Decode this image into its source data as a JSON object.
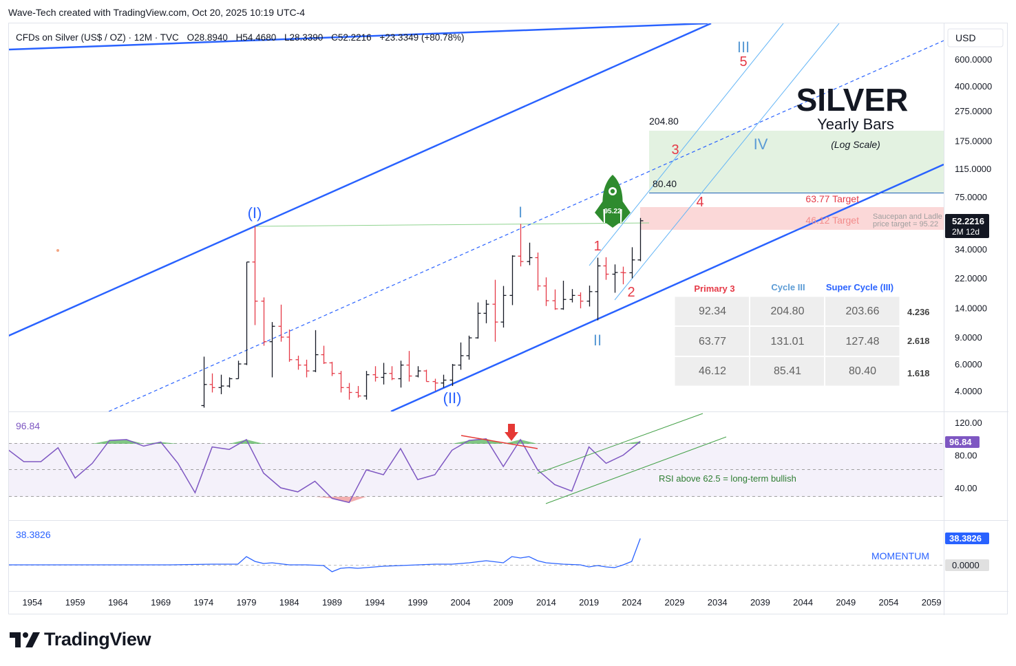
{
  "header": {
    "text": "Wave-Tech created with TradingView.com, Oct 20, 2025 10:19 UTC-4"
  },
  "legend": {
    "symbol": "CFDs on Silver (US$ / OZ) · 12M · TVC",
    "o_key": "O",
    "o_val": "28.8940",
    "h_key": "H",
    "h_val": "54.4680",
    "l_key": "L",
    "l_val": "28.3390",
    "c_key": "C",
    "c_val": "52.2216",
    "chg": "+23.3349 (+80.78%)"
  },
  "currency": "USD",
  "title": {
    "main": "SILVER",
    "sub": "Yearly Bars",
    "scale": "(Log Scale)"
  },
  "price_axis": [
    "600.0000",
    "400.0000",
    "275.0000",
    "175.0000",
    "115.0000",
    "75.0000",
    "34.0000",
    "22.0000",
    "14.0000",
    "9.0000",
    "6.0000",
    "4.0000"
  ],
  "price_tag": {
    "value": "52.2216",
    "countdown": "2M 12d"
  },
  "rsi_axis": [
    "120.00",
    "80.00",
    "40.00"
  ],
  "rsi_value": "96.84",
  "momentum_axis": [
    "0.0000"
  ],
  "momentum_value": "38.3826",
  "momentum_label": "MOMENTUM",
  "rsi_note": "RSI above 62.5 = long-term bullish",
  "time_axis": [
    "1954",
    "1959",
    "1964",
    "1969",
    "1974",
    "1979",
    "1984",
    "1989",
    "1994",
    "1999",
    "2004",
    "2009",
    "2014",
    "2019",
    "2024",
    "2029",
    "2034",
    "2039",
    "2044",
    "2049",
    "2054",
    "2059"
  ],
  "waves": {
    "w_I_primary": "(I)",
    "w_II_primary": "(II)",
    "w_I_cycle": "I",
    "w_II_cycle": "II",
    "w_III_cycle": "III",
    "w_IV_cycle": "IV",
    "m1": "1",
    "m2": "2",
    "m3": "3",
    "m4": "4",
    "m5": "5"
  },
  "levels": {
    "top": "204.80",
    "mid": "80.40"
  },
  "targets": {
    "t1": "63.77 Target",
    "t2": "46.12 Target"
  },
  "saucepan": {
    "line1": "Saucepan and Ladle",
    "line2": "price target = 95.22"
  },
  "rocket_value": "95.22",
  "fib_table": {
    "headers": [
      "Primary 3",
      "Cycle III",
      "Super Cycle (III)"
    ],
    "rows": [
      {
        "cells": [
          "92.34",
          "204.80",
          "203.66"
        ],
        "ratio": "4.236"
      },
      {
        "cells": [
          "63.77",
          "131.01",
          "127.48"
        ],
        "ratio": "2.618"
      },
      {
        "cells": [
          "46.12",
          "85.41",
          "80.40"
        ],
        "ratio": "1.618"
      }
    ]
  },
  "brand": "TradingView",
  "chart_data": {
    "type": "bar",
    "symbol": "CFDs on Silver (US$ / OZ)",
    "interval": "12M",
    "scale": "log",
    "title": "SILVER",
    "subtitle": "Yearly Bars",
    "ylim": [
      3.2,
      700
    ],
    "xlim": [
      1951,
      2061
    ],
    "bars": [
      {
        "year": 1974,
        "o": 3.2,
        "h": 6.7,
        "l": 3.1,
        "c": 4.4
      },
      {
        "year": 1975,
        "o": 4.4,
        "h": 5.2,
        "l": 3.9,
        "c": 4.2
      },
      {
        "year": 1976,
        "o": 4.2,
        "h": 5.1,
        "l": 3.8,
        "c": 4.3
      },
      {
        "year": 1977,
        "o": 4.3,
        "h": 4.9,
        "l": 4.2,
        "c": 4.8
      },
      {
        "year": 1978,
        "o": 4.8,
        "h": 6.3,
        "l": 4.8,
        "c": 6.0
      },
      {
        "year": 1979,
        "o": 6.0,
        "h": 28.0,
        "l": 5.9,
        "c": 28.0
      },
      {
        "year": 1980,
        "o": 28.0,
        "h": 48.0,
        "l": 10.8,
        "c": 15.5
      },
      {
        "year": 1981,
        "o": 15.5,
        "h": 16.4,
        "l": 7.9,
        "c": 8.4
      },
      {
        "year": 1982,
        "o": 8.4,
        "h": 11.3,
        "l": 4.9,
        "c": 10.6
      },
      {
        "year": 1983,
        "o": 10.6,
        "h": 14.7,
        "l": 8.4,
        "c": 9.0
      },
      {
        "year": 1984,
        "o": 9.0,
        "h": 10.1,
        "l": 6.2,
        "c": 6.4
      },
      {
        "year": 1985,
        "o": 6.4,
        "h": 6.8,
        "l": 5.5,
        "c": 5.9
      },
      {
        "year": 1986,
        "o": 5.9,
        "h": 6.4,
        "l": 4.9,
        "c": 5.4
      },
      {
        "year": 1987,
        "o": 5.4,
        "h": 10.0,
        "l": 5.3,
        "c": 6.9
      },
      {
        "year": 1988,
        "o": 6.9,
        "h": 7.9,
        "l": 6.0,
        "c": 6.1
      },
      {
        "year": 1989,
        "o": 6.1,
        "h": 6.2,
        "l": 5.0,
        "c": 5.2
      },
      {
        "year": 1990,
        "o": 5.2,
        "h": 5.4,
        "l": 3.9,
        "c": 4.2
      },
      {
        "year": 1991,
        "o": 4.2,
        "h": 4.5,
        "l": 3.5,
        "c": 3.9
      },
      {
        "year": 1992,
        "o": 3.9,
        "h": 4.3,
        "l": 3.6,
        "c": 3.7
      },
      {
        "year": 1993,
        "o": 3.7,
        "h": 5.4,
        "l": 3.5,
        "c": 5.1
      },
      {
        "year": 1994,
        "o": 5.1,
        "h": 5.8,
        "l": 4.6,
        "c": 4.9
      },
      {
        "year": 1995,
        "o": 4.9,
        "h": 6.1,
        "l": 4.4,
        "c": 5.2
      },
      {
        "year": 1996,
        "o": 5.2,
        "h": 5.8,
        "l": 4.7,
        "c": 4.8
      },
      {
        "year": 1997,
        "o": 4.8,
        "h": 6.3,
        "l": 4.2,
        "c": 5.9
      },
      {
        "year": 1998,
        "o": 5.9,
        "h": 7.3,
        "l": 4.6,
        "c": 5.0
      },
      {
        "year": 1999,
        "o": 5.0,
        "h": 5.8,
        "l": 4.9,
        "c": 5.4
      },
      {
        "year": 2000,
        "o": 5.4,
        "h": 5.5,
        "l": 4.6,
        "c": 4.6
      },
      {
        "year": 2001,
        "o": 4.6,
        "h": 4.8,
        "l": 4.0,
        "c": 4.5
      },
      {
        "year": 2002,
        "o": 4.5,
        "h": 5.1,
        "l": 4.2,
        "c": 4.7
      },
      {
        "year": 2003,
        "o": 4.7,
        "h": 6.0,
        "l": 4.3,
        "c": 5.9
      },
      {
        "year": 2004,
        "o": 5.9,
        "h": 8.3,
        "l": 5.5,
        "c": 6.8
      },
      {
        "year": 2005,
        "o": 6.8,
        "h": 9.2,
        "l": 6.4,
        "c": 8.9
      },
      {
        "year": 2006,
        "o": 8.9,
        "h": 15.2,
        "l": 8.8,
        "c": 12.9
      },
      {
        "year": 2007,
        "o": 12.9,
        "h": 15.8,
        "l": 11.1,
        "c": 14.8
      },
      {
        "year": 2008,
        "o": 14.8,
        "h": 21.4,
        "l": 8.4,
        "c": 11.3
      },
      {
        "year": 2009,
        "o": 11.3,
        "h": 19.5,
        "l": 10.4,
        "c": 16.9
      },
      {
        "year": 2010,
        "o": 16.9,
        "h": 31.0,
        "l": 14.6,
        "c": 30.6
      },
      {
        "year": 2011,
        "o": 30.6,
        "h": 49.8,
        "l": 26.2,
        "c": 28.2
      },
      {
        "year": 2012,
        "o": 28.2,
        "h": 37.5,
        "l": 26.7,
        "c": 29.9
      },
      {
        "year": 2013,
        "o": 29.9,
        "h": 32.3,
        "l": 18.2,
        "c": 19.5
      },
      {
        "year": 2014,
        "o": 19.5,
        "h": 22.2,
        "l": 14.4,
        "c": 15.6
      },
      {
        "year": 2015,
        "o": 15.6,
        "h": 18.5,
        "l": 13.6,
        "c": 13.8
      },
      {
        "year": 2016,
        "o": 13.8,
        "h": 21.1,
        "l": 13.6,
        "c": 15.9
      },
      {
        "year": 2017,
        "o": 15.9,
        "h": 18.6,
        "l": 15.2,
        "c": 16.9
      },
      {
        "year": 2018,
        "o": 16.9,
        "h": 17.7,
        "l": 13.9,
        "c": 15.5
      },
      {
        "year": 2019,
        "o": 15.5,
        "h": 19.6,
        "l": 14.3,
        "c": 17.9
      },
      {
        "year": 2020,
        "o": 17.9,
        "h": 29.9,
        "l": 11.6,
        "c": 26.4
      },
      {
        "year": 2021,
        "o": 26.4,
        "h": 30.1,
        "l": 21.4,
        "c": 23.3
      },
      {
        "year": 2022,
        "o": 23.3,
        "h": 27.0,
        "l": 17.6,
        "c": 23.9
      },
      {
        "year": 2023,
        "o": 23.9,
        "h": 26.1,
        "l": 20.0,
        "c": 23.8
      },
      {
        "year": 2024,
        "o": 23.8,
        "h": 35.0,
        "l": 21.9,
        "c": 28.9
      },
      {
        "year": 2025,
        "o": 28.894,
        "h": 54.468,
        "l": 28.339,
        "c": 52.2216
      }
    ],
    "rsi": {
      "name": "RSI",
      "last": 96.84,
      "ylim": [
        10,
        130
      ],
      "bands": [
        62.5,
        30
      ],
      "x": [
        1951,
        1953,
        1955,
        1957,
        1959,
        1961,
        1963,
        1965,
        1967,
        1969,
        1971,
        1973,
        1975,
        1977,
        1979,
        1981,
        1983,
        1985,
        1987,
        1989,
        1991,
        1993,
        1995,
        1997,
        1999,
        2001,
        2003,
        2005,
        2007,
        2009,
        2011,
        2013,
        2015,
        2017,
        2019,
        2021,
        2023,
        2025
      ],
      "y": [
        88,
        72,
        72,
        89,
        52,
        70,
        98,
        99,
        91,
        96,
        70,
        34,
        90,
        87,
        99,
        58,
        40,
        35,
        48,
        27,
        22,
        62,
        56,
        88,
        50,
        56,
        86,
        98,
        100,
        66,
        99,
        62,
        44,
        36,
        90,
        70,
        80,
        96.84
      ]
    },
    "momentum": {
      "name": "MOMENTUM",
      "last": 38.3826,
      "ylim": [
        -10,
        45
      ],
      "x": [
        1951,
        1960,
        1970,
        1975,
        1978,
        1979,
        1980,
        1981,
        1982,
        1984,
        1986,
        1988,
        1989,
        1990,
        1991,
        1992,
        1993,
        1995,
        1997,
        1999,
        2001,
        2003,
        2005,
        2007,
        2009,
        2010,
        2011,
        2012,
        2013,
        2014,
        2016,
        2018,
        2019,
        2020,
        2021,
        2022,
        2023,
        2024,
        2025
      ],
      "y": [
        0,
        0,
        0,
        1,
        1,
        12,
        5,
        2,
        3,
        0,
        0,
        -1,
        -10,
        -5,
        -4,
        -5,
        -4,
        -2,
        -1,
        0,
        1,
        1,
        3,
        6,
        3,
        12,
        10,
        12,
        6,
        3,
        1,
        0,
        -3,
        -1,
        -3,
        -4,
        0,
        5,
        38.3826
      ]
    }
  }
}
